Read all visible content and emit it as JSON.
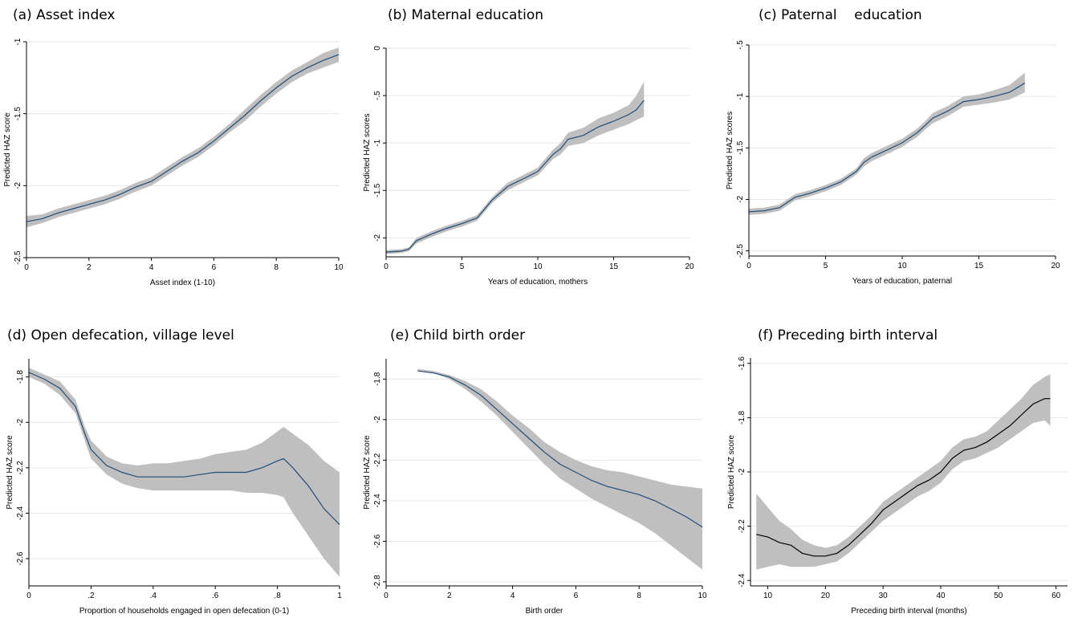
{
  "chart_data": [
    {
      "type": "line",
      "title": "(a) Asset index",
      "xlabel": "Asset index (1-10)",
      "ylabel": "Predicted HAZ score",
      "xlim": [
        0,
        10
      ],
      "ylim": [
        -2.5,
        -1
      ],
      "xticks": [
        "0",
        "2",
        "4",
        "6",
        "8",
        "10"
      ],
      "yticks": [
        "-2.5",
        "-2",
        "-1.5",
        "-1"
      ],
      "grid": true,
      "line_color": "#1f4e79",
      "band_color": "#bfbfbf",
      "series": [
        {
          "x": [
            0,
            0.5,
            1,
            1.5,
            2,
            2.5,
            3,
            3.5,
            4,
            4.5,
            5,
            5.5,
            6,
            6.5,
            7,
            7.5,
            8,
            8.5,
            9,
            9.5,
            10
          ],
          "y": [
            -2.25,
            -2.23,
            -2.19,
            -2.16,
            -2.13,
            -2.1,
            -2.06,
            -2.01,
            -1.97,
            -1.9,
            -1.83,
            -1.77,
            -1.69,
            -1.6,
            -1.51,
            -1.41,
            -1.32,
            -1.24,
            -1.18,
            -1.13,
            -1.09
          ],
          "lower": [
            -2.29,
            -2.26,
            -2.22,
            -2.19,
            -2.16,
            -2.13,
            -2.09,
            -2.04,
            -2.0,
            -1.93,
            -1.86,
            -1.8,
            -1.72,
            -1.63,
            -1.55,
            -1.45,
            -1.36,
            -1.28,
            -1.22,
            -1.18,
            -1.14
          ],
          "upper": [
            -2.21,
            -2.2,
            -2.16,
            -2.13,
            -2.1,
            -2.07,
            -2.03,
            -1.98,
            -1.94,
            -1.87,
            -1.8,
            -1.74,
            -1.66,
            -1.57,
            -1.47,
            -1.37,
            -1.28,
            -1.2,
            -1.14,
            -1.08,
            -1.04
          ]
        }
      ]
    },
    {
      "type": "line",
      "title": "(b) Maternal education",
      "xlabel": "Years of education, mothers",
      "ylabel": "Predicted HAZ scores",
      "xlim": [
        0,
        20
      ],
      "ylim": [
        -2.2,
        0
      ],
      "xticks": [
        "0",
        "5",
        "10",
        "15",
        "20"
      ],
      "yticks": [
        "-2",
        "-1.5",
        "-1",
        "-.5",
        "0"
      ],
      "grid": true,
      "line_color": "#1f4e79",
      "band_color": "#bfbfbf",
      "series": [
        {
          "x": [
            0,
            1,
            1.5,
            2,
            3,
            4,
            5,
            6,
            7,
            8,
            9,
            10,
            11,
            11.5,
            12,
            13,
            14,
            15,
            16,
            16.5,
            17
          ],
          "y": [
            -2.15,
            -2.14,
            -2.12,
            -2.03,
            -1.96,
            -1.9,
            -1.85,
            -1.79,
            -1.6,
            -1.46,
            -1.38,
            -1.3,
            -1.12,
            -1.06,
            -0.96,
            -0.92,
            -0.83,
            -0.77,
            -0.7,
            -0.65,
            -0.55
          ],
          "lower": [
            -2.17,
            -2.16,
            -2.14,
            -2.06,
            -1.99,
            -1.93,
            -1.88,
            -1.82,
            -1.63,
            -1.5,
            -1.42,
            -1.34,
            -1.17,
            -1.12,
            -1.03,
            -1.0,
            -0.92,
            -0.86,
            -0.8,
            -0.76,
            -0.72
          ],
          "upper": [
            -2.13,
            -2.12,
            -2.1,
            -2.0,
            -1.93,
            -1.87,
            -1.82,
            -1.76,
            -1.57,
            -1.42,
            -1.34,
            -1.26,
            -1.07,
            -1.0,
            -0.89,
            -0.84,
            -0.74,
            -0.68,
            -0.6,
            -0.5,
            -0.35
          ]
        }
      ]
    },
    {
      "type": "line",
      "title": "(c) Paternal    education",
      "xlabel": "Years of education, paternal",
      "ylabel": "Predicted HAZ scores",
      "xlim": [
        0,
        20
      ],
      "ylim": [
        -2.55,
        -0.5
      ],
      "xticks": [
        "0",
        "5",
        "10",
        "15",
        "20"
      ],
      "yticks": [
        "-2.5",
        "-2",
        "-1.5",
        "-1",
        "-.5"
      ],
      "grid": true,
      "line_color": "#1f4e79",
      "band_color": "#bfbfbf",
      "series": [
        {
          "x": [
            0,
            1,
            2,
            3,
            4,
            5,
            6,
            7,
            7.5,
            8,
            9,
            10,
            11,
            11.5,
            12,
            13,
            14,
            15,
            16,
            17,
            18
          ],
          "y": [
            -2.12,
            -2.11,
            -2.08,
            -1.98,
            -1.94,
            -1.89,
            -1.83,
            -1.73,
            -1.64,
            -1.59,
            -1.52,
            -1.45,
            -1.35,
            -1.28,
            -1.21,
            -1.14,
            -1.05,
            -1.03,
            -1.0,
            -0.96,
            -0.87
          ],
          "lower": [
            -2.15,
            -2.14,
            -2.11,
            -2.01,
            -1.97,
            -1.92,
            -1.86,
            -1.76,
            -1.68,
            -1.63,
            -1.56,
            -1.49,
            -1.39,
            -1.32,
            -1.26,
            -1.19,
            -1.1,
            -1.08,
            -1.06,
            -1.03,
            -0.96
          ],
          "upper": [
            -2.09,
            -2.08,
            -2.05,
            -1.95,
            -1.91,
            -1.86,
            -1.8,
            -1.7,
            -1.6,
            -1.55,
            -1.48,
            -1.41,
            -1.31,
            -1.24,
            -1.16,
            -1.09,
            -1.0,
            -0.98,
            -0.94,
            -0.89,
            -0.77
          ]
        }
      ]
    },
    {
      "type": "line",
      "title": "(d) Open defecation, village level",
      "xlabel": "Proportion of households engaged in open defecation (0-1)",
      "ylabel": "Predicted HAZ score",
      "xlim": [
        0,
        1
      ],
      "ylim": [
        -2.72,
        -1.72
      ],
      "xticks": [
        "0",
        ".2",
        ".4",
        ".6",
        ".8",
        "1"
      ],
      "yticks": [
        "-2.6",
        "-2.4",
        "-2.2",
        "-2",
        "-1.8"
      ],
      "grid": true,
      "line_color": "#1f4e79",
      "band_color": "#bfbfbf",
      "series": [
        {
          "x": [
            0,
            0.05,
            0.1,
            0.15,
            0.18,
            0.2,
            0.25,
            0.3,
            0.35,
            0.4,
            0.45,
            0.5,
            0.55,
            0.6,
            0.65,
            0.7,
            0.75,
            0.8,
            0.82,
            0.85,
            0.9,
            0.95,
            1
          ],
          "y": [
            -1.78,
            -1.81,
            -1.85,
            -1.93,
            -2.05,
            -2.12,
            -2.19,
            -2.22,
            -2.24,
            -2.24,
            -2.24,
            -2.24,
            -2.23,
            -2.22,
            -2.22,
            -2.22,
            -2.2,
            -2.17,
            -2.16,
            -2.2,
            -2.28,
            -2.38,
            -2.45
          ],
          "lower": [
            -1.8,
            -1.83,
            -1.88,
            -1.96,
            -2.08,
            -2.16,
            -2.23,
            -2.27,
            -2.29,
            -2.3,
            -2.3,
            -2.3,
            -2.3,
            -2.3,
            -2.3,
            -2.31,
            -2.31,
            -2.32,
            -2.33,
            -2.4,
            -2.5,
            -2.6,
            -2.68
          ],
          "upper": [
            -1.76,
            -1.79,
            -1.82,
            -1.9,
            -2.02,
            -2.08,
            -2.15,
            -2.18,
            -2.19,
            -2.18,
            -2.18,
            -2.17,
            -2.16,
            -2.14,
            -2.13,
            -2.12,
            -2.09,
            -2.04,
            -2.02,
            -2.05,
            -2.1,
            -2.17,
            -2.22
          ]
        }
      ]
    },
    {
      "type": "line",
      "title": "(e) Child birth order",
      "xlabel": "Birth order",
      "ylabel": "Predicted HAZ score",
      "xlim": [
        0,
        10
      ],
      "ylim": [
        -2.82,
        -1.7
      ],
      "xticks": [
        "0",
        "2",
        "4",
        "6",
        "8",
        "10"
      ],
      "yticks": [
        "-2.8",
        "-2.6",
        "-2.4",
        "-2.2",
        "-2",
        "-1.8"
      ],
      "grid": true,
      "line_color": "#1f4e79",
      "band_color": "#bfbfbf",
      "series": [
        {
          "x": [
            1,
            1.5,
            2,
            2.5,
            3,
            3.5,
            4,
            4.5,
            5,
            5.5,
            6,
            6.5,
            7,
            7.5,
            8,
            8.5,
            9,
            9.5,
            10
          ],
          "y": [
            -1.76,
            -1.77,
            -1.79,
            -1.83,
            -1.88,
            -1.95,
            -2.02,
            -2.09,
            -2.16,
            -2.22,
            -2.26,
            -2.3,
            -2.33,
            -2.35,
            -2.37,
            -2.4,
            -2.44,
            -2.48,
            -2.53
          ],
          "lower": [
            -1.76,
            -1.77,
            -1.8,
            -1.85,
            -1.91,
            -1.98,
            -2.06,
            -2.14,
            -2.22,
            -2.29,
            -2.34,
            -2.39,
            -2.43,
            -2.47,
            -2.51,
            -2.56,
            -2.62,
            -2.68,
            -2.74
          ],
          "upper": [
            -1.75,
            -1.76,
            -1.78,
            -1.81,
            -1.85,
            -1.91,
            -1.98,
            -2.04,
            -2.11,
            -2.16,
            -2.2,
            -2.23,
            -2.25,
            -2.26,
            -2.28,
            -2.3,
            -2.32,
            -2.33,
            -2.34
          ]
        }
      ]
    },
    {
      "type": "line",
      "title": "(f) Preceding birth interval",
      "xlabel": "Preceding birth interval (months)",
      "ylabel": "Predicted HAZ score",
      "xlim": [
        7,
        62
      ],
      "ylim": [
        -2.42,
        -1.58
      ],
      "xticks": [
        "10",
        "20",
        "30",
        "40",
        "50",
        "60"
      ],
      "yticks": [
        "-2.4",
        "-2.2",
        "-2",
        "-1.8",
        "-1.6"
      ],
      "grid": true,
      "line_color": "#000000",
      "band_color": "#bfbfbf",
      "series": [
        {
          "x": [
            8,
            10,
            12,
            14,
            16,
            18,
            20,
            22,
            24,
            26,
            28,
            30,
            32,
            34,
            36,
            38,
            40,
            42,
            44,
            46,
            48,
            50,
            52,
            54,
            56,
            58,
            59
          ],
          "y": [
            -2.23,
            -2.24,
            -2.26,
            -2.27,
            -2.3,
            -2.31,
            -2.31,
            -2.3,
            -2.27,
            -2.23,
            -2.19,
            -2.14,
            -2.11,
            -2.08,
            -2.05,
            -2.03,
            -2.0,
            -1.95,
            -1.92,
            -1.91,
            -1.89,
            -1.86,
            -1.83,
            -1.79,
            -1.75,
            -1.73,
            -1.73
          ],
          "lower": [
            -2.36,
            -2.35,
            -2.34,
            -2.35,
            -2.35,
            -2.35,
            -2.34,
            -2.33,
            -2.3,
            -2.26,
            -2.22,
            -2.18,
            -2.15,
            -2.12,
            -2.09,
            -2.07,
            -2.04,
            -1.99,
            -1.96,
            -1.95,
            -1.93,
            -1.91,
            -1.88,
            -1.85,
            -1.82,
            -1.81,
            -1.83
          ],
          "upper": [
            -2.08,
            -2.13,
            -2.18,
            -2.21,
            -2.25,
            -2.27,
            -2.28,
            -2.27,
            -2.24,
            -2.2,
            -2.16,
            -2.11,
            -2.08,
            -2.05,
            -2.02,
            -1.99,
            -1.96,
            -1.91,
            -1.88,
            -1.87,
            -1.85,
            -1.81,
            -1.77,
            -1.73,
            -1.68,
            -1.65,
            -1.64
          ]
        }
      ]
    }
  ]
}
